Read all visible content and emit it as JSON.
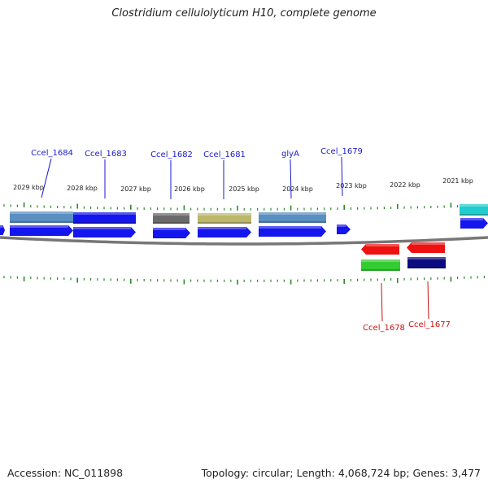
{
  "title": "Clostridium cellulolyticum H10, complete genome",
  "footer": {
    "accession": "Accession: NC_011898",
    "topology": "Topology: circular; Length: 4,068,724 bp; Genes: 3,477"
  },
  "colors": {
    "forward_label": "#1a1acc",
    "reverse_label": "#cc1111",
    "backbone": "#777777",
    "tick": "#2a8a2a"
  },
  "kbp_labels": [
    "2029 kbp",
    "2028 kbp",
    "2027 kbp",
    "2026 kbp",
    "2025 kbp",
    "2024 kbp",
    "2023 kbp",
    "2022 kbp",
    "2021 kbp"
  ],
  "genes_forward": [
    {
      "label": "Ccel_1684",
      "color": "#5b8fc2"
    },
    {
      "label": "Ccel_1683",
      "color": "#1515ee"
    },
    {
      "label": "Ccel_1682",
      "color": "#6a6a6a"
    },
    {
      "label": "Ccel_1681",
      "color": "#bdb76b"
    },
    {
      "label": "glyA",
      "color": "#5b8fc2"
    },
    {
      "label": "Ccel_1679",
      "color": "#1515ee"
    }
  ],
  "genes_reverse": [
    {
      "label": "Ccel_1678",
      "color": "#ee1111"
    },
    {
      "label": "Ccel_1677",
      "color": "#ee1111"
    }
  ],
  "cog_reverse_colors": [
    "#33cc33",
    "#0b0b80"
  ],
  "edge_feature_colors": [
    "#22cccc",
    "#1515ee"
  ]
}
